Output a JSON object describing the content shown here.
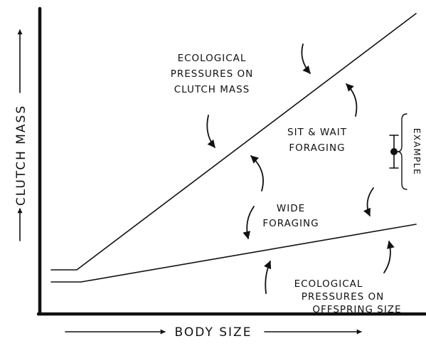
{
  "axes": {
    "x_label": "BODY SIZE",
    "y_label": "CLUTCH MASS"
  },
  "labels": {
    "upper_pressures": [
      "ECOLOGICAL",
      "PRESSURES ON",
      "CLUTCH MASS"
    ],
    "sit_and_wait": [
      "SIT & WAIT",
      "FORAGING"
    ],
    "wide_foraging": [
      "WIDE",
      "FORAGING"
    ],
    "lower_pressures": [
      "ECOLOGICAL",
      "PRESSURES ON",
      "OFFSPRING SIZE"
    ],
    "example": "EXAMPLE"
  },
  "colors": {
    "ink": "#111111",
    "background": "#ffffff"
  }
}
